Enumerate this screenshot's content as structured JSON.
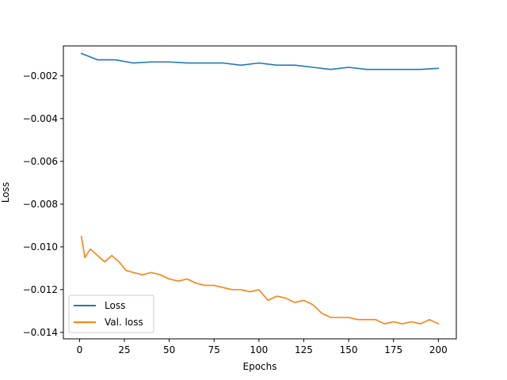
{
  "chart_data": {
    "type": "line",
    "title": "",
    "xlabel": "Epochs",
    "ylabel": "Loss",
    "xlim": [
      -9,
      210
    ],
    "ylim": [
      -0.0143,
      -0.0006
    ],
    "xticks": [
      0,
      25,
      50,
      75,
      100,
      125,
      150,
      175,
      200
    ],
    "yticks": [
      -0.002,
      -0.004,
      -0.006,
      -0.008,
      -0.01,
      -0.012,
      -0.014
    ],
    "ytick_labels": [
      "−0.002",
      "−0.004",
      "−0.006",
      "−0.008",
      "−0.010",
      "−0.012",
      "−0.014"
    ],
    "legend_position": "lower-left",
    "grid": false,
    "series": [
      {
        "name": "Loss",
        "color": "#1f77b4",
        "x": [
          1,
          10,
          20,
          30,
          40,
          50,
          60,
          70,
          80,
          90,
          100,
          110,
          120,
          130,
          140,
          150,
          160,
          170,
          180,
          190,
          200
        ],
        "values": [
          -0.00095,
          -0.00125,
          -0.00125,
          -0.0014,
          -0.00135,
          -0.00135,
          -0.0014,
          -0.0014,
          -0.0014,
          -0.0015,
          -0.0014,
          -0.0015,
          -0.0015,
          -0.0016,
          -0.0017,
          -0.0016,
          -0.0017,
          -0.0017,
          -0.0017,
          -0.0017,
          -0.00165
        ]
      },
      {
        "name": "Val. loss",
        "color": "#ff7f0e",
        "x": [
          1,
          3,
          6,
          10,
          14,
          18,
          22,
          26,
          30,
          35,
          40,
          45,
          50,
          55,
          60,
          65,
          70,
          75,
          80,
          85,
          90,
          95,
          100,
          105,
          110,
          115,
          120,
          125,
          130,
          135,
          140,
          145,
          150,
          155,
          160,
          165,
          170,
          175,
          180,
          185,
          190,
          195,
          200
        ],
        "values": [
          -0.0095,
          -0.0105,
          -0.0101,
          -0.0104,
          -0.0107,
          -0.0104,
          -0.0107,
          -0.0111,
          -0.0112,
          -0.0113,
          -0.0112,
          -0.0113,
          -0.0115,
          -0.0116,
          -0.0115,
          -0.0117,
          -0.0118,
          -0.0118,
          -0.0119,
          -0.012,
          -0.012,
          -0.0121,
          -0.012,
          -0.0125,
          -0.0123,
          -0.0124,
          -0.0126,
          -0.0125,
          -0.0127,
          -0.0131,
          -0.0133,
          -0.0133,
          -0.0133,
          -0.0134,
          -0.0134,
          -0.0134,
          -0.0136,
          -0.0135,
          -0.0136,
          -0.0135,
          -0.0136,
          -0.0134,
          -0.0136
        ]
      }
    ]
  }
}
